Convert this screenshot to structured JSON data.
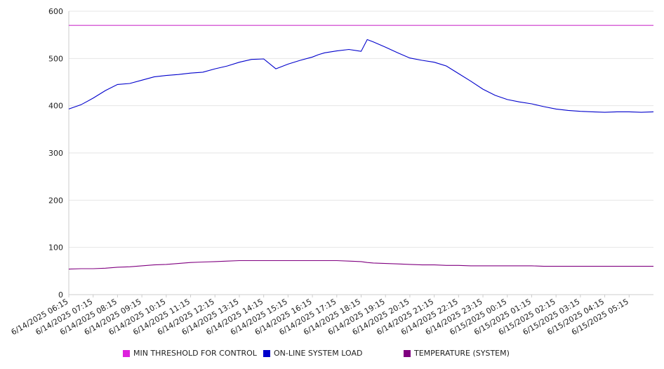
{
  "chart_data": {
    "type": "line",
    "ylim": [
      0,
      600
    ],
    "yticks": [
      "0",
      "100",
      "200",
      "300",
      "400",
      "500",
      "600"
    ],
    "grid": true,
    "x_tick_labels": [
      "6/14/2025 06:15",
      "6/14/2025 07:15",
      "6/14/2025 08:15",
      "6/14/2025 09:15",
      "6/14/2025 10:15",
      "6/14/2025 11:15",
      "6/14/2025 12:15",
      "6/14/2025 13:15",
      "6/14/2025 14:15",
      "6/14/2025 15:15",
      "6/14/2025 16:15",
      "6/14/2025 17:15",
      "6/14/2025 18:15",
      "6/14/2025 19:15",
      "6/14/2025 20:15",
      "6/14/2025 21:15",
      "6/14/2025 22:15",
      "6/14/2025 23:15",
      "6/15/2025 00:15",
      "6/15/2025 01:15",
      "6/15/2025 02:15",
      "6/15/2025 03:15",
      "6/15/2025 04:15",
      "6/15/2025 05:15"
    ],
    "x_hours": [
      0,
      0.5,
      1,
      1.5,
      2,
      2.5,
      3,
      3.5,
      4,
      4.5,
      5,
      5.5,
      6,
      6.5,
      7,
      7.5,
      8,
      8.5,
      9,
      9.5,
      10,
      10.25,
      10.5,
      11,
      11.5,
      12,
      12.25,
      12.5,
      13,
      13.5,
      14,
      14.5,
      15,
      15.5,
      16,
      16.5,
      17,
      17.5,
      18,
      18.5,
      19,
      19.5,
      20,
      20.5,
      21,
      21.5,
      22,
      22.5,
      23,
      23.5,
      24
    ],
    "legend_position": "bottom",
    "series": [
      {
        "name": "MIN THRESHOLD FOR CONTROL",
        "color": "#cc33cc",
        "values": [
          570,
          570,
          570,
          570,
          570,
          570,
          570,
          570,
          570,
          570,
          570,
          570,
          570,
          570,
          570,
          570,
          570,
          570,
          570,
          570,
          570,
          570,
          570,
          570,
          570,
          570,
          570,
          570,
          570,
          570,
          570,
          570,
          570,
          570,
          570,
          570,
          570,
          570,
          570,
          570,
          570,
          570,
          570,
          570,
          570,
          570,
          570,
          570,
          570,
          570,
          570
        ]
      },
      {
        "name": "ON-LINE SYSTEM LOAD",
        "color": "#0000cc",
        "values": [
          393,
          402,
          416,
          432,
          445,
          447,
          454,
          461,
          464,
          466,
          469,
          471,
          478,
          484,
          492,
          498,
          499,
          478,
          488,
          496,
          503,
          508,
          512,
          516,
          519,
          515,
          540,
          535,
          524,
          512,
          501,
          496,
          492,
          484,
          468,
          452,
          435,
          422,
          413,
          408,
          404,
          398,
          393,
          390,
          388,
          387,
          386,
          387,
          387,
          386,
          387
        ]
      },
      {
        "name": "TEMPERATURE (SYSTEM)",
        "color": "#800080",
        "values": [
          54,
          55,
          55,
          56,
          58,
          59,
          61,
          63,
          64,
          66,
          68,
          69,
          70,
          71,
          72,
          72,
          72,
          72,
          72,
          72,
          72,
          72,
          72,
          72,
          71,
          70,
          68,
          67,
          66,
          65,
          64,
          63,
          63,
          62,
          62,
          61,
          61,
          61,
          61,
          61,
          61,
          60,
          60,
          60,
          60,
          60,
          60,
          60,
          60,
          60,
          60
        ]
      }
    ]
  }
}
